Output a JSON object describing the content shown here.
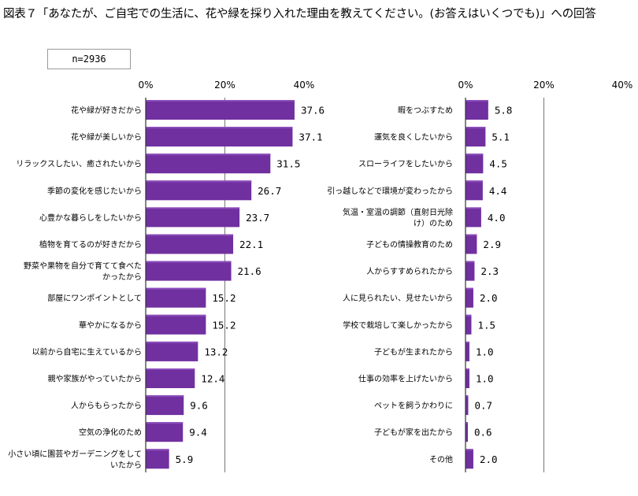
{
  "title": "図表７「あなたが、ご自宅での生活に、花や緑を採り入れた理由を教えてください。(お答えはいくつでも)」への回答",
  "sample_size": "n=2936",
  "colors": {
    "bar": "#7030a0",
    "bar_highlight": "#8b4dba",
    "axis": "#333333",
    "grid": "#777777"
  },
  "chart_data": [
    {
      "type": "bar",
      "orientation": "horizontal",
      "xlim": [
        0,
        40
      ],
      "ticks": [
        "0%",
        "20%",
        "40%"
      ],
      "categories": [
        "花や緑が好きだから",
        "花や緑が美しいから",
        "リラックスしたい、癒されたいから",
        "季節の変化を感じたいから",
        "心豊かな暮らしをしたいから",
        "植物を育てるのが好きだから",
        "野菜や果物を自分で育てて食べたかったから",
        "部屋にワンポイントとして",
        "華やかになるから",
        "以前から自宅に生えているから",
        "親や家族がやっていたから",
        "人からもらったから",
        "空気の浄化のため",
        "小さい頃に園芸やガーデニングをしていたから"
      ],
      "label_lines": [
        [
          "花や緑が好きだから"
        ],
        [
          "花や緑が美しいから"
        ],
        [
          "リラックスしたい、癒されたいから"
        ],
        [
          "季節の変化を感じたいから"
        ],
        [
          "心豊かな暮らしをしたいから"
        ],
        [
          "植物を育てるのが好きだから"
        ],
        [
          "野菜や果物を自分で育てて食べた",
          "かったから"
        ],
        [
          "部屋にワンポイントとして"
        ],
        [
          "華やかになるから"
        ],
        [
          "以前から自宅に生えているから"
        ],
        [
          "親や家族がやっていたから"
        ],
        [
          "人からもらったから"
        ],
        [
          "空気の浄化のため"
        ],
        [
          "小さい頃に園芸やガーデニングをして",
          "いたから"
        ]
      ],
      "values": [
        37.6,
        37.1,
        31.5,
        26.7,
        23.7,
        22.1,
        21.6,
        15.2,
        15.2,
        13.2,
        12.4,
        9.6,
        9.4,
        5.9
      ],
      "value_labels": [
        "37.6",
        "37.1",
        "31.5",
        "26.7",
        "23.7",
        "22.1",
        "21.6",
        "15.2",
        "15.2",
        "13.2",
        "12.4",
        "9.6",
        "9.4",
        "5.9"
      ]
    },
    {
      "type": "bar",
      "orientation": "horizontal",
      "xlim": [
        0,
        40
      ],
      "ticks": [
        "0%",
        "20%",
        "40%"
      ],
      "categories": [
        "暇をつぶすため",
        "運気を良くしたいから",
        "スローライフをしたいから",
        "引っ越しなどで環境が変わったから",
        "気温・室温の調節（直射日光除け）のため",
        "子どもの情操教育のため",
        "人からすすめられたから",
        "人に見られたい、見せたいから",
        "学校で栽培して楽しかったから",
        "子どもが生まれたから",
        "仕事の効率を上げたいから",
        "ペットを飼うかわりに",
        "子どもが家を出たから",
        "その他"
      ],
      "label_lines": [
        [
          "暇をつぶすため"
        ],
        [
          "運気を良くしたいから"
        ],
        [
          "スローライフをしたいから"
        ],
        [
          "引っ越しなどで環境が変わったから"
        ],
        [
          "気温・室温の調節（直射日光除",
          "け）のため"
        ],
        [
          "子どもの情操教育のため"
        ],
        [
          "人からすすめられたから"
        ],
        [
          "人に見られたい、見せたいから"
        ],
        [
          "学校で栽培して楽しかったから"
        ],
        [
          "子どもが生まれたから"
        ],
        [
          "仕事の効率を上げたいから"
        ],
        [
          "ペットを飼うかわりに"
        ],
        [
          "子どもが家を出たから"
        ],
        [
          "その他"
        ]
      ],
      "values": [
        5.8,
        5.1,
        4.5,
        4.4,
        4.0,
        2.9,
        2.3,
        2.0,
        1.5,
        1.0,
        1.0,
        0.7,
        0.6,
        2.0
      ],
      "value_labels": [
        "5.8",
        "5.1",
        "4.5",
        "4.4",
        "4.0",
        "2.9",
        "2.3",
        "2.0",
        "1.5",
        "1.0",
        "1.0",
        "0.7",
        "0.6",
        "2.0"
      ]
    }
  ]
}
